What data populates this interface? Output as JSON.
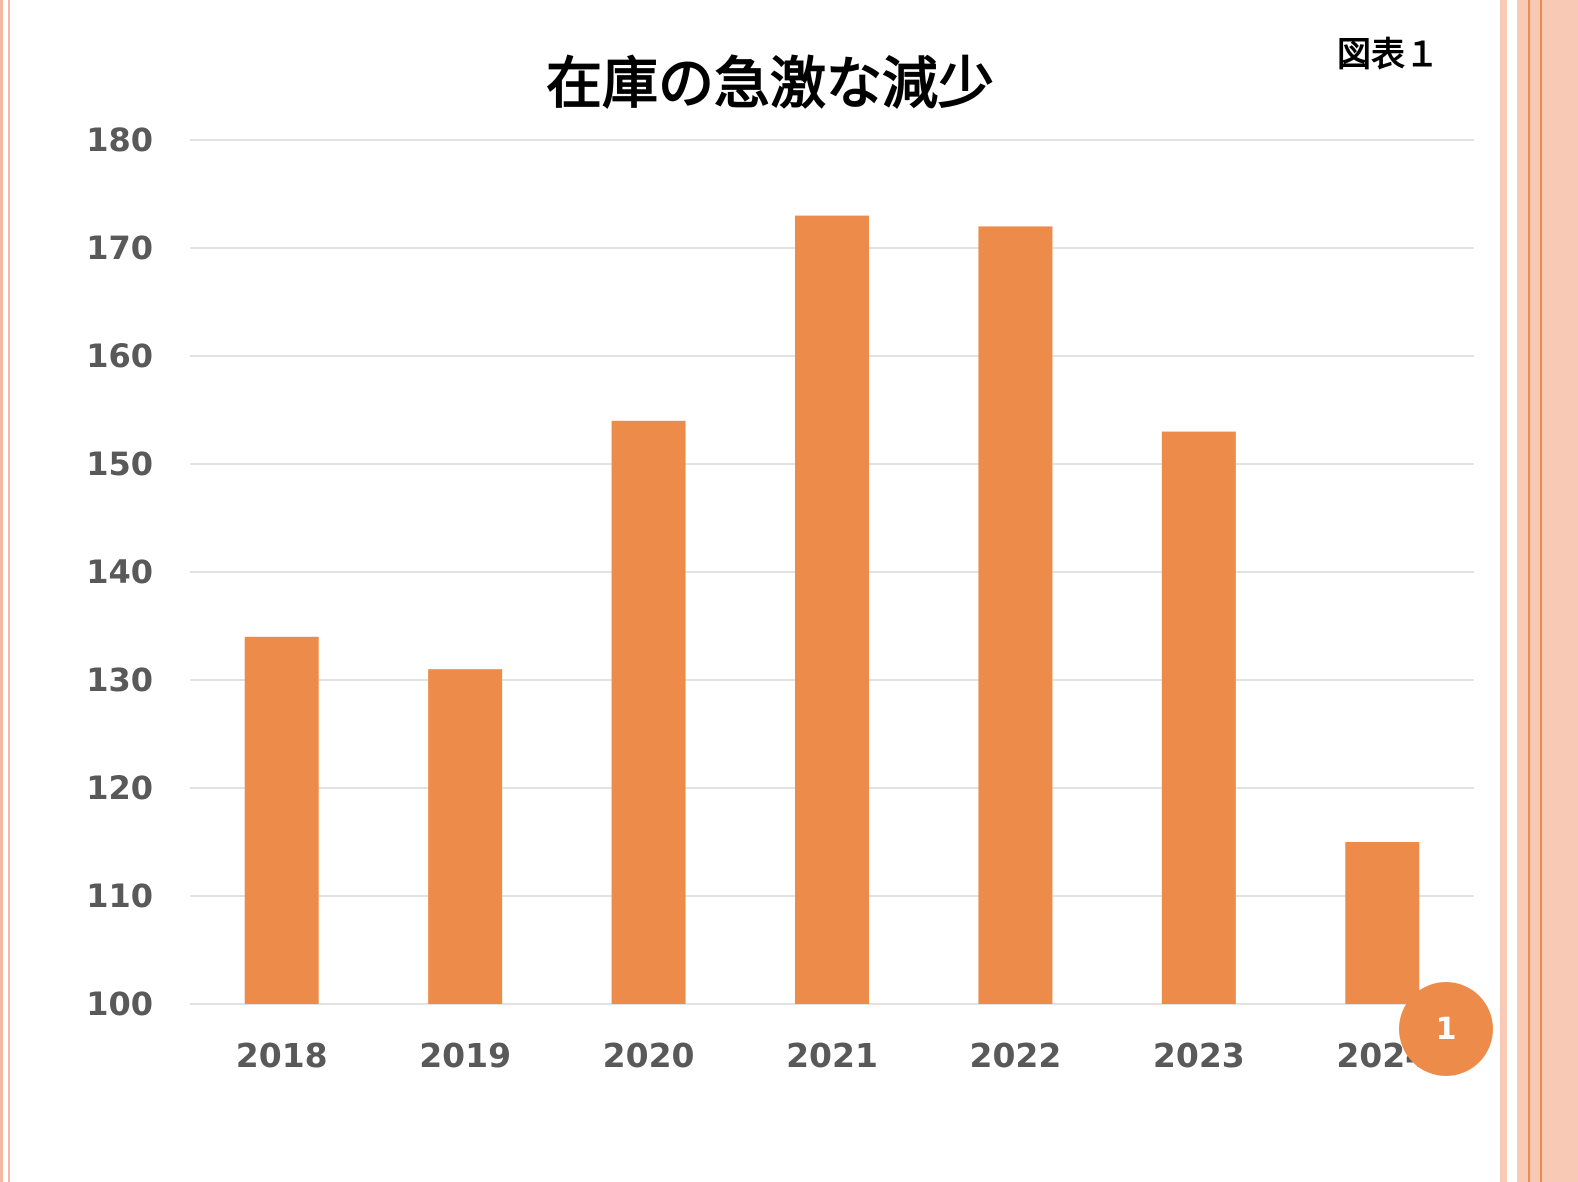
{
  "figure_label": "図表１",
  "page_number": "1",
  "colors": {
    "bar": "#ED8C4A",
    "gridline": "#D9D9D9",
    "tick_text": "#595959",
    "frame_left": "#F4B9A0",
    "frame_right_fill": "#F8C9B4",
    "frame_right_line": "#ED8C4A",
    "badge": "#ED8C4A"
  },
  "chart_data": {
    "type": "bar",
    "title": "在庫の急激な減少",
    "xlabel": "",
    "ylabel": "",
    "categories": [
      "2018",
      "2019",
      "2020",
      "2021",
      "2022",
      "2023",
      "2024"
    ],
    "values": [
      134,
      131,
      154,
      173,
      172,
      153,
      115
    ],
    "ylim": [
      100,
      180
    ],
    "yticks": [
      100,
      110,
      120,
      130,
      140,
      150,
      160,
      170,
      180
    ],
    "grid": true,
    "legend": "none"
  }
}
